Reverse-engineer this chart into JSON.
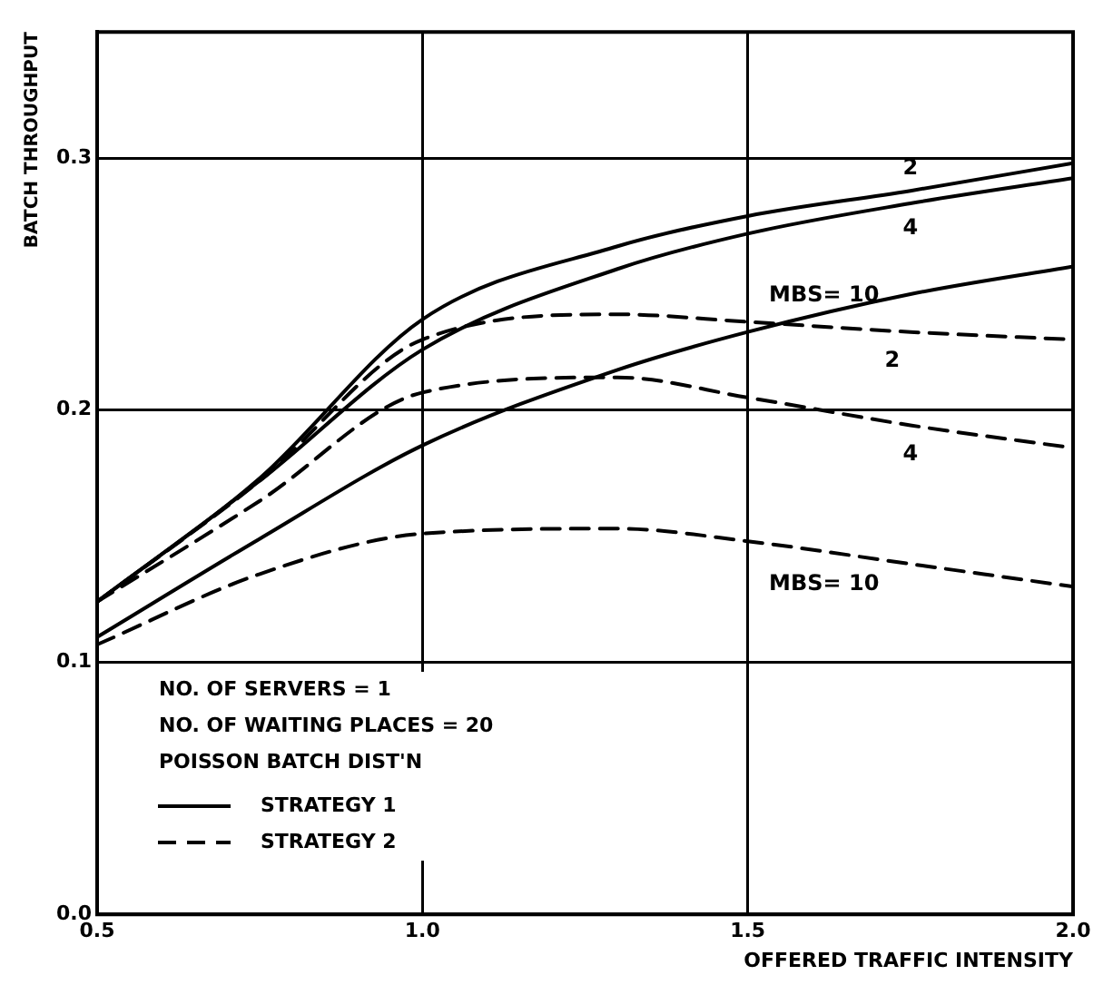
{
  "chart_data": {
    "type": "line",
    "xlabel": "OFFERED TRAFFIC INTENSITY",
    "ylabel": "BATCH THROUGHPUT",
    "x": [
      0.5,
      0.75,
      1.0,
      1.3,
      1.5,
      1.75,
      2.0
    ],
    "series": [
      {
        "name": "2",
        "color": "#000000",
        "line_style": "solid",
        "values": [
          0.124,
          0.173,
          0.236,
          0.265,
          0.277,
          0.287,
          0.298
        ]
      },
      {
        "name": "4",
        "color": "#000000",
        "line_style": "solid",
        "values": [
          0.124,
          0.172,
          0.224,
          0.256,
          0.27,
          0.282,
          0.292
        ]
      },
      {
        "name": "MBS= 10",
        "color": "#000000",
        "line_style": "solid",
        "values": [
          0.11,
          0.149,
          0.186,
          0.216,
          0.231,
          0.246,
          0.257
        ]
      },
      {
        "name": "2",
        "color": "#000000",
        "line_style": "dashed",
        "values": [
          0.124,
          0.172,
          0.228,
          0.238,
          0.235,
          0.231,
          0.228
        ]
      },
      {
        "name": "4",
        "color": "#000000",
        "line_style": "dashed",
        "values": [
          0.124,
          0.164,
          0.207,
          0.213,
          0.205,
          0.194,
          0.185
        ]
      },
      {
        "name": "MBS= 10",
        "color": "#000000",
        "line_style": "dashed",
        "values": [
          0.107,
          0.135,
          0.151,
          0.153,
          0.148,
          0.139,
          0.13
        ]
      }
    ],
    "xlim": [
      0.5,
      2.0
    ],
    "xticks": [
      {
        "value": 0.5,
        "label": "0.5"
      },
      {
        "value": 1.0,
        "label": "1.0"
      },
      {
        "value": 1.5,
        "label": "1.5"
      },
      {
        "value": 2.0,
        "label": "2.0"
      }
    ],
    "ylim": [
      0,
      0.35
    ],
    "yticks": [
      {
        "value": 0,
        "label": "0.0"
      },
      {
        "value": 0.1,
        "label": "0.1"
      },
      {
        "value": 0.2,
        "label": "0.2"
      },
      {
        "value": 0.3,
        "label": "0.3"
      }
    ],
    "grid": true,
    "marker": "none",
    "annotations": [
      "NO. OF SERVERS = 1",
      "NO. OF WAITING PLACES = 20",
      "POISSON BATCH DIST'N",
      "STRATEGY 1",
      "STRATEGY 2"
    ]
  }
}
